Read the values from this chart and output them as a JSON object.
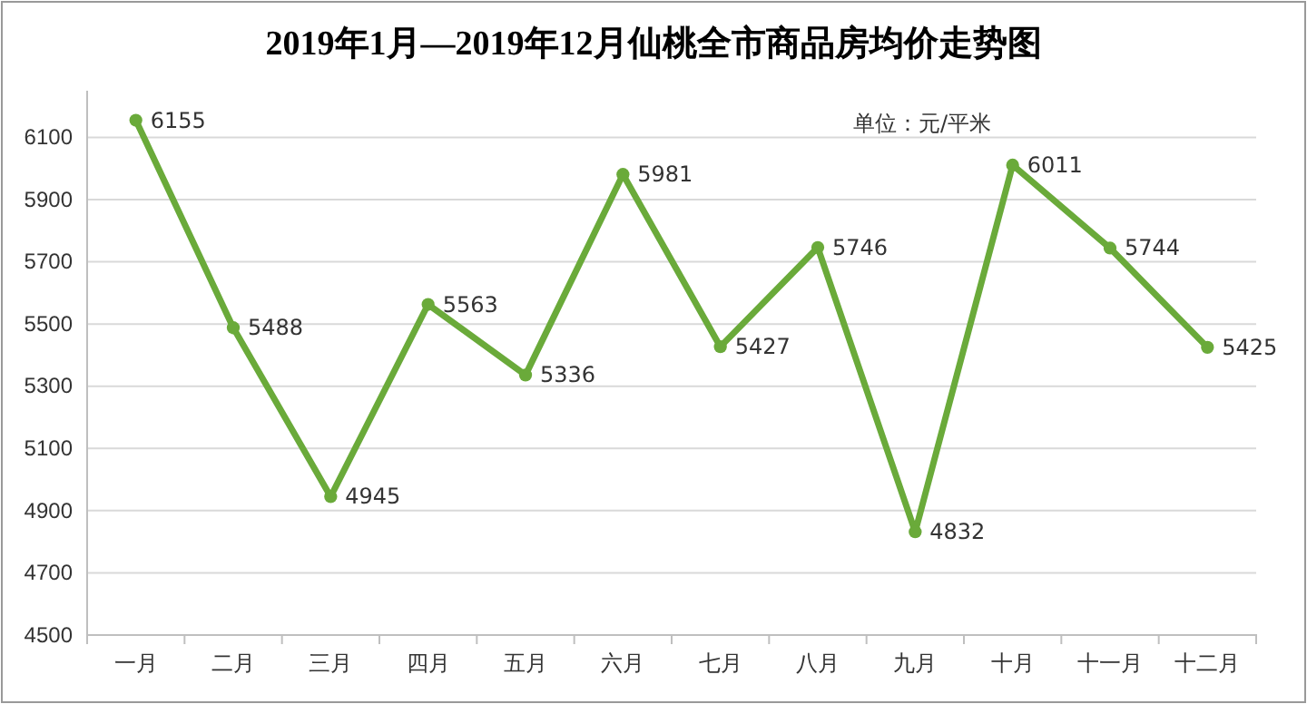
{
  "chart_data": {
    "type": "line",
    "title": "2019年1月—2019年12月仙桃全市商品房均价走势图",
    "categories": [
      "一月",
      "二月",
      "三月",
      "四月",
      "五月",
      "六月",
      "七月",
      "八月",
      "九月",
      "十月",
      "十一月",
      "十二月"
    ],
    "series": [
      {
        "color": "#6aaa3a",
        "values": [
          6155,
          5488,
          4945,
          5563,
          5336,
          5981,
          5427,
          5746,
          4832,
          6011,
          5744,
          5425
        ]
      }
    ],
    "ylim": [
      4500,
      6250
    ],
    "yticks": [
      4500,
      4700,
      4900,
      5100,
      5300,
      5500,
      5700,
      5900,
      6100
    ],
    "grid": "y",
    "marker": "circle",
    "line_style": "solid",
    "data_labels": true,
    "annotations": [
      "单位：元/平米"
    ]
  }
}
